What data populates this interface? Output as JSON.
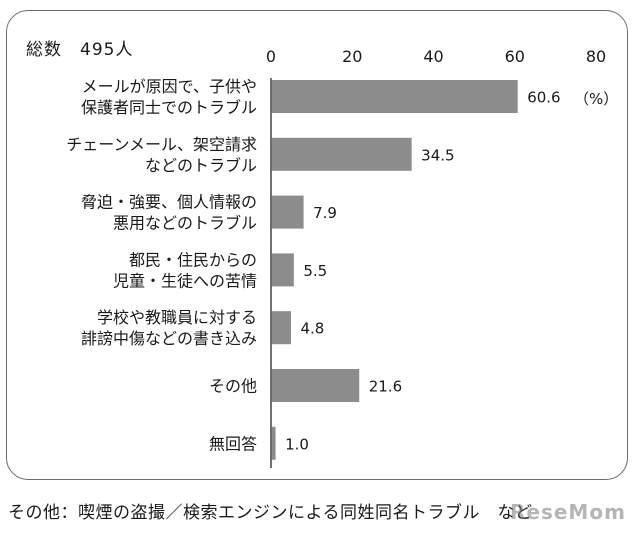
{
  "header": {
    "total_label": "総数　495人"
  },
  "chart_data": {
    "type": "bar",
    "orientation": "horizontal",
    "unit": "（%）",
    "xlim": [
      0,
      80
    ],
    "ticks": [
      0,
      20,
      40,
      60,
      80
    ],
    "categories": [
      [
        "メールが原因で、子供や",
        "保護者同士でのトラブル"
      ],
      [
        "チェーンメール、架空請求",
        "などのトラブル"
      ],
      [
        "脅迫・強要、個人情報の",
        "悪用などのトラブル"
      ],
      [
        "都民・住民からの",
        "児童・生徒への苦情"
      ],
      [
        "学校や教職員に対する",
        "誹謗中傷などの書き込み"
      ],
      [
        "その他"
      ],
      [
        "無回答"
      ]
    ],
    "values": [
      60.6,
      34.5,
      7.9,
      5.5,
      4.8,
      21.6,
      1.0
    ],
    "value_labels": [
      "60.6",
      "34.5",
      "7.9",
      "5.5",
      "4.8",
      "21.6",
      "1.0"
    ],
    "bar_color": "#8c8c8c",
    "grid": false
  },
  "footnote": "その他：喫煙の盗撮／検索エンジンによる同姓同名トラブル　など",
  "watermark": "ReseMom"
}
